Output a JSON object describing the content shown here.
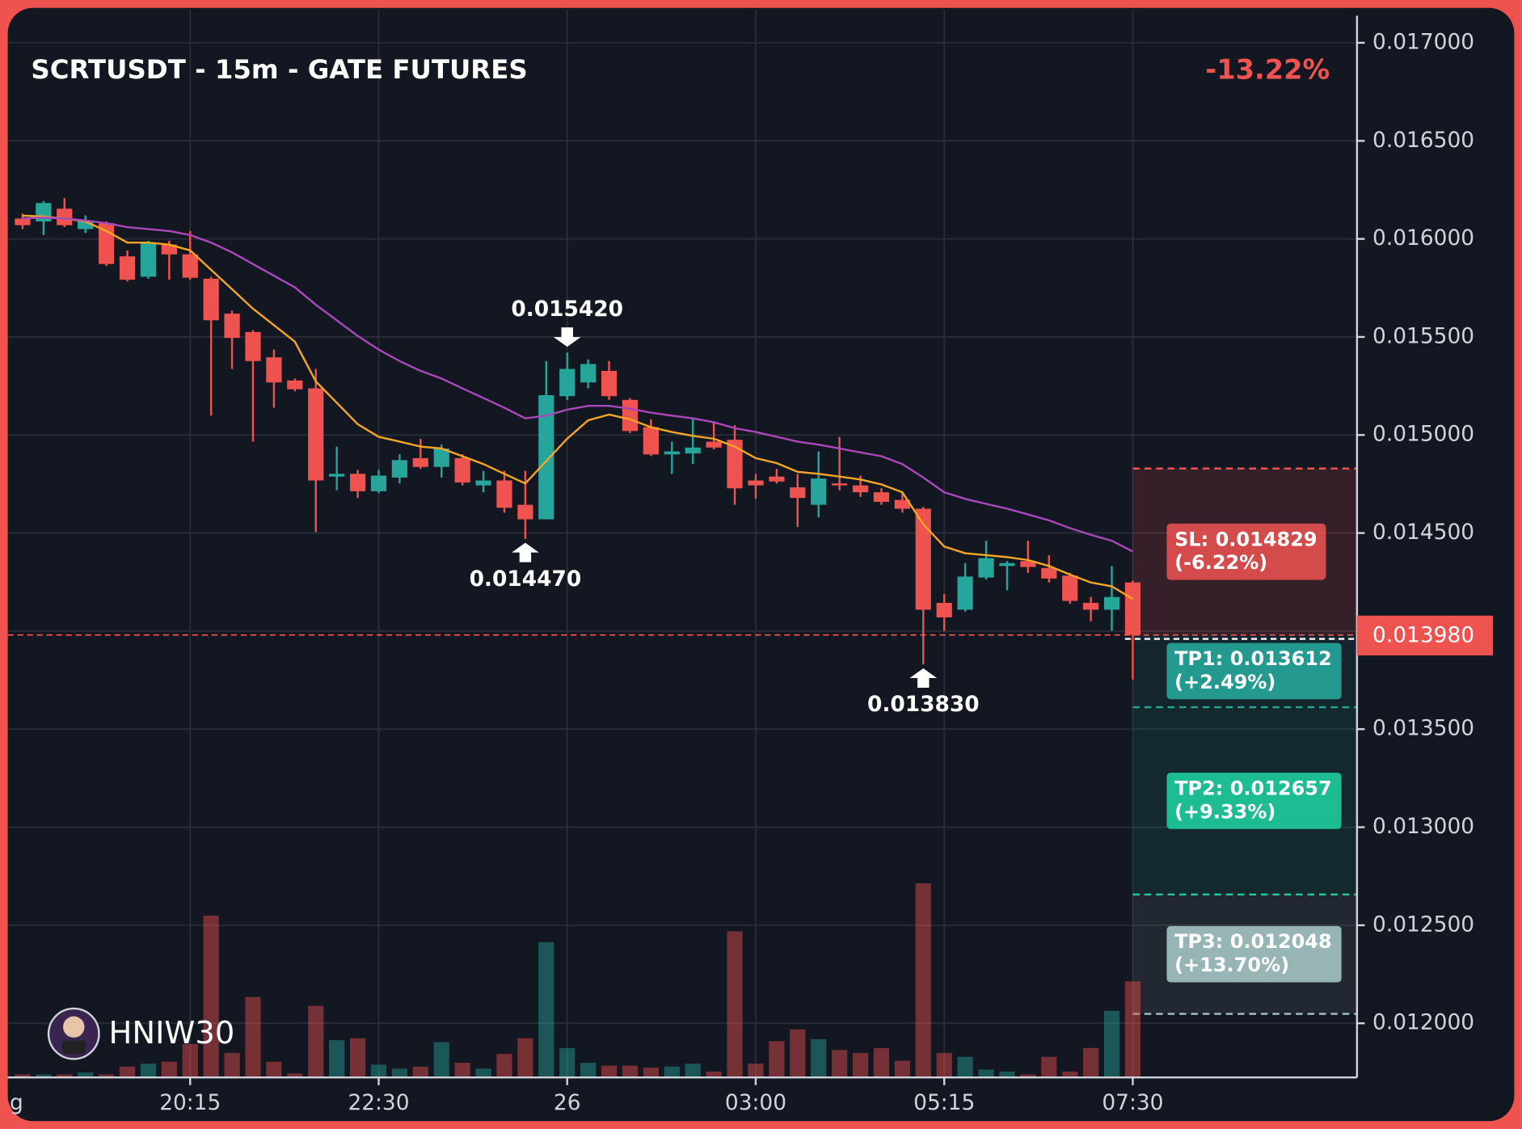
{
  "chart_data": {
    "type": "candlestick",
    "title": "SCRTUSDT - 15m - GATE FUTURES",
    "change_label": "-13.22%",
    "watermark": "HNIW30",
    "x_edge_label": "g",
    "categories": [
      null,
      null,
      null,
      null,
      null,
      null,
      null,
      null,
      "20:15",
      null,
      null,
      null,
      null,
      null,
      null,
      null,
      null,
      "22:30",
      null,
      null,
      null,
      null,
      null,
      null,
      null,
      null,
      "26",
      null,
      null,
      null,
      null,
      null,
      null,
      null,
      null,
      "03:00",
      null,
      null,
      null,
      null,
      null,
      null,
      null,
      null,
      "05:15",
      null,
      null,
      null,
      null,
      null,
      null,
      null,
      null,
      "07:30"
    ],
    "open": [
      0.016104,
      0.016089,
      0.016154,
      0.01605,
      0.01608,
      0.015911,
      0.015807,
      0.015971,
      0.015921,
      0.015797,
      0.015619,
      0.015525,
      0.015396,
      0.015278,
      0.015238,
      0.014788,
      0.014802,
      0.014713,
      0.014783,
      0.014882,
      0.014837,
      0.014882,
      0.014743,
      0.014768,
      0.014644,
      0.01457,
      0.015198,
      0.015268,
      0.015327,
      0.015179,
      0.01504,
      0.014901,
      0.014906,
      0.014966,
      0.014976,
      0.014768,
      0.014788,
      0.014733,
      0.014644,
      0.014753,
      0.014743,
      0.014708,
      0.014669,
      0.014624,
      0.014144,
      0.014109,
      0.014273,
      0.014332,
      0.014357,
      0.014322,
      0.014283,
      0.014144,
      0.014109,
      0.014248
    ],
    "high": [
      0.016129,
      0.016193,
      0.016208,
      0.016119,
      0.016089,
      0.015941,
      0.01599,
      0.01599,
      0.01604,
      0.015807,
      0.015634,
      0.015535,
      0.015436,
      0.015288,
      0.015337,
      0.014941,
      0.014822,
      0.014822,
      0.014902,
      0.01498,
      0.014951,
      0.014902,
      0.014817,
      0.014817,
      0.014817,
      0.015377,
      0.01542,
      0.015386,
      0.015377,
      0.015188,
      0.01508,
      0.014966,
      0.01508,
      0.015065,
      0.01505,
      0.014802,
      0.014827,
      0.014802,
      0.014916,
      0.01499,
      0.014793,
      0.014728,
      0.014703,
      0.014634,
      0.014189,
      0.014347,
      0.014461,
      0.014357,
      0.014461,
      0.014387,
      0.014297,
      0.014174,
      0.014332,
      0.014258
    ],
    "low": [
      0.01605,
      0.01602,
      0.01606,
      0.01603,
      0.015862,
      0.015783,
      0.015797,
      0.015792,
      0.015792,
      0.015099,
      0.015337,
      0.014966,
      0.015139,
      0.015223,
      0.014505,
      0.014718,
      0.014679,
      0.014703,
      0.014753,
      0.014827,
      0.014783,
      0.014743,
      0.014708,
      0.014604,
      0.01447,
      0.01457,
      0.015179,
      0.015238,
      0.015179,
      0.01501,
      0.014892,
      0.014802,
      0.014852,
      0.014926,
      0.014644,
      0.014674,
      0.014753,
      0.01453,
      0.01458,
      0.014718,
      0.014684,
      0.014644,
      0.014604,
      0.01383,
      0.014001,
      0.0141,
      0.014263,
      0.014208,
      0.014297,
      0.014248,
      0.014139,
      0.01405,
      0.014001,
      0.013753
    ],
    "close": [
      0.01607,
      0.016183,
      0.01607,
      0.016089,
      0.015872,
      0.015792,
      0.015981,
      0.015921,
      0.015802,
      0.015585,
      0.015495,
      0.015377,
      0.015268,
      0.015233,
      0.014768,
      0.014802,
      0.014713,
      0.014793,
      0.014872,
      0.014837,
      0.014931,
      0.014758,
      0.014768,
      0.014629,
      0.01457,
      0.015203,
      0.015337,
      0.015362,
      0.015198,
      0.01502,
      0.014901,
      0.014916,
      0.014936,
      0.014936,
      0.014728,
      0.014743,
      0.014763,
      0.014679,
      0.014778,
      0.014743,
      0.014708,
      0.014659,
      0.014624,
      0.014109,
      0.01407,
      0.014278,
      0.014372,
      0.014347,
      0.014327,
      0.014268,
      0.014154,
      0.014109,
      0.014174,
      0.01398
    ],
    "volume": [
      3,
      3,
      3,
      5,
      3,
      11,
      14,
      16,
      34,
      165,
      25,
      82,
      16,
      4,
      73,
      38,
      40,
      13,
      9,
      11,
      36,
      15,
      9,
      24,
      40,
      138,
      30,
      15,
      12,
      12,
      10,
      11,
      14,
      6,
      149,
      14,
      37,
      49,
      39,
      28,
      25,
      30,
      17,
      198,
      25,
      21,
      8,
      6,
      3,
      21,
      6,
      30,
      68,
      98
    ],
    "up_color": "#26a69a",
    "down_color": "#ef5350",
    "lines": [
      {
        "color": "#f5a623",
        "values": [
          0.016119,
          0.016114,
          0.016104,
          0.016089,
          0.01604,
          0.015981,
          0.015981,
          0.015971,
          0.015941,
          0.015842,
          0.015743,
          0.015644,
          0.01556,
          0.015476,
          0.015273,
          0.015164,
          0.015055,
          0.014991,
          0.014966,
          0.014941,
          0.014931,
          0.014892,
          0.014852,
          0.014802,
          0.014753,
          0.014867,
          0.014981,
          0.015075,
          0.015104,
          0.01508,
          0.01504,
          0.015015,
          0.014996,
          0.014981,
          0.014941,
          0.014882,
          0.014857,
          0.014812,
          0.014802,
          0.014788,
          0.014773,
          0.014748,
          0.014708,
          0.014545,
          0.014431,
          0.014397,
          0.014387,
          0.014377,
          0.014362,
          0.014332,
          0.014288,
          0.014248,
          0.014228,
          0.014164
        ]
      },
      {
        "color": "#ab47bc",
        "values": [
          0.016104,
          0.016109,
          0.016104,
          0.016094,
          0.01608,
          0.01606,
          0.01605,
          0.01604,
          0.01602,
          0.015981,
          0.015931,
          0.015872,
          0.015812,
          0.015753,
          0.015664,
          0.015585,
          0.015505,
          0.015436,
          0.015377,
          0.015327,
          0.015288,
          0.015238,
          0.015189,
          0.015139,
          0.015085,
          0.015099,
          0.015129,
          0.015149,
          0.015149,
          0.015134,
          0.015114,
          0.015099,
          0.015085,
          0.015065,
          0.015035,
          0.015015,
          0.014991,
          0.014966,
          0.014951,
          0.014931,
          0.014911,
          0.014892,
          0.014852,
          0.014783,
          0.014708,
          0.014674,
          0.014649,
          0.014624,
          0.014595,
          0.014565,
          0.014525,
          0.014491,
          0.014461,
          0.014406
        ]
      }
    ],
    "annotations": [
      {
        "candle": 26,
        "text": "0.015420",
        "value": 0.01542
      },
      {
        "candle": 24,
        "text": "0.014470",
        "value": 0.01447
      },
      {
        "candle": 43,
        "text": "0.013830",
        "value": 0.01383
      }
    ],
    "last_price": {
      "value": 0.01398,
      "label": "0.013980"
    },
    "levels": [
      {
        "label": "SL: 0.014829",
        "sub": "(-6.22%)",
        "value": 0.014829,
        "color": "#ef5350"
      },
      {
        "label": "TP1: 0.013612",
        "sub": "(+2.49%)",
        "value": 0.013612,
        "color": "#26a69a"
      },
      {
        "label": "TP2: 0.012657",
        "sub": "(+9.33%)",
        "value": 0.012657,
        "color": "#1ecc9e"
      },
      {
        "label": "TP3: 0.012048",
        "sub": "(+13.70%)",
        "value": 0.012048,
        "color": "#a3c4c2"
      }
    ],
    "ylim": [
      0.011724,
      0.017168
    ],
    "yticks": [
      {
        "value": 0.012,
        "label": "0.012000"
      },
      {
        "value": 0.0125,
        "label": "0.012500"
      },
      {
        "value": 0.013,
        "label": "0.013000"
      },
      {
        "value": 0.0135,
        "label": "0.013500"
      },
      {
        "value": 0.014,
        "label": "0.014000"
      },
      {
        "value": 0.0145,
        "label": "0.014500"
      },
      {
        "value": 0.015,
        "label": "0.015000"
      },
      {
        "value": 0.0155,
        "label": "0.015500"
      },
      {
        "value": 0.016,
        "label": "0.016000"
      },
      {
        "value": 0.0165,
        "label": "0.016500"
      },
      {
        "value": 0.017,
        "label": "0.017000"
      }
    ],
    "grid": true
  }
}
